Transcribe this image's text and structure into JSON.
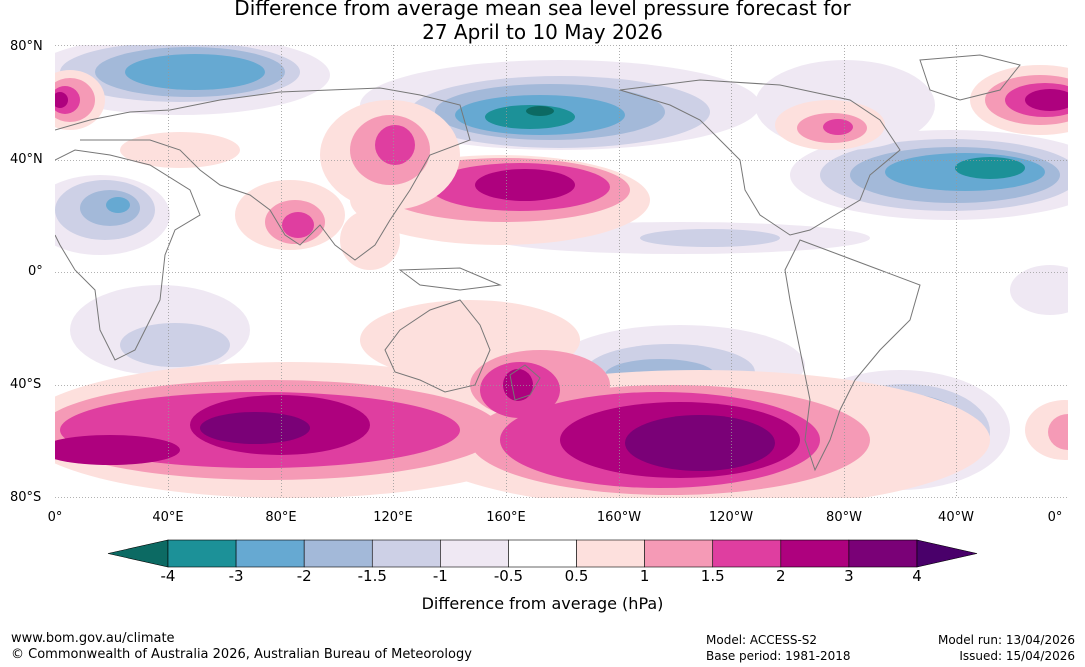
{
  "title": {
    "line1": "Difference from average mean sea level pressure forecast for",
    "line2": "27 April to 10 May 2026"
  },
  "lat_labels": [
    "80°N",
    "40°N",
    "0°",
    "40°S",
    "80°S"
  ],
  "lon_labels": [
    "0°",
    "40°E",
    "80°E",
    "120°E",
    "160°E",
    "160°W",
    "120°W",
    "80°W",
    "40°W",
    "0°"
  ],
  "colorbar": {
    "levels": [
      "-4",
      "-3",
      "-2",
      "-1.5",
      "-1",
      "-0.5",
      "0.5",
      "1",
      "1.5",
      "2",
      "3",
      "4"
    ],
    "colors": [
      "#0c6a63",
      "#1c9198",
      "#66a9d2",
      "#a3b9d9",
      "#cdd0e6",
      "#efe8f3",
      "#ffffff",
      "#fde0dd",
      "#f59ab6",
      "#df3ea0",
      "#ae017e",
      "#7a0177",
      "#49006a"
    ],
    "label": "Difference from average (hPa)"
  },
  "footer": {
    "website": "www.bom.gov.au/climate",
    "copyright": "© Commonwealth of Australia 2026, Australian Bureau of Meteorology",
    "model": "Model: ACCESS-S2",
    "base_period": "Base period: 1981-2018",
    "model_run": "Model run: 13/04/2026",
    "issued": "Issued: 15/04/2026"
  }
}
